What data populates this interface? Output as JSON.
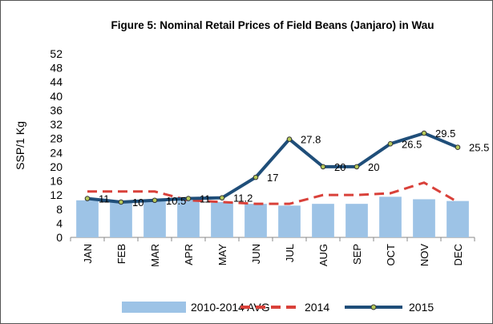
{
  "chart_data": {
    "type": "bar-line",
    "title": "Figure 5: Nominal Retail Prices of Field Beans (Janjaro) in Wau",
    "ylabel": "SSP/1 Kg",
    "categories": [
      "JAN",
      "FEB",
      "MAR",
      "APR",
      "MAY",
      "JUN",
      "JUL",
      "AUG",
      "SEP",
      "OCT",
      "NOV",
      "DEC"
    ],
    "series": [
      {
        "name": "2010-2014 AVG",
        "color": "#9dc3e6",
        "kind": "bar",
        "values": [
          10.5,
          10,
          10.5,
          10.5,
          10,
          9.5,
          9,
          9.5,
          9.5,
          11.5,
          10.8,
          10.3
        ]
      },
      {
        "name": "2014",
        "color": "#d9413a",
        "kind": "dashed",
        "values": [
          13,
          13,
          13,
          10.5,
          10,
          9.5,
          9.5,
          12,
          12,
          12.5,
          15.5,
          10
        ]
      },
      {
        "name": "2015",
        "color": "#1f4e79",
        "marker_color": "#b5c95a",
        "kind": "line",
        "values": [
          11,
          10,
          10.5,
          11,
          11.2,
          17,
          27.8,
          20,
          20,
          26.5,
          29.5,
          25.5
        ],
        "labels": true
      }
    ],
    "ylim": [
      0,
      52
    ],
    "yticks": [
      0,
      4,
      8,
      12,
      16,
      20,
      24,
      28,
      32,
      36,
      40,
      44,
      48,
      52
    ]
  }
}
